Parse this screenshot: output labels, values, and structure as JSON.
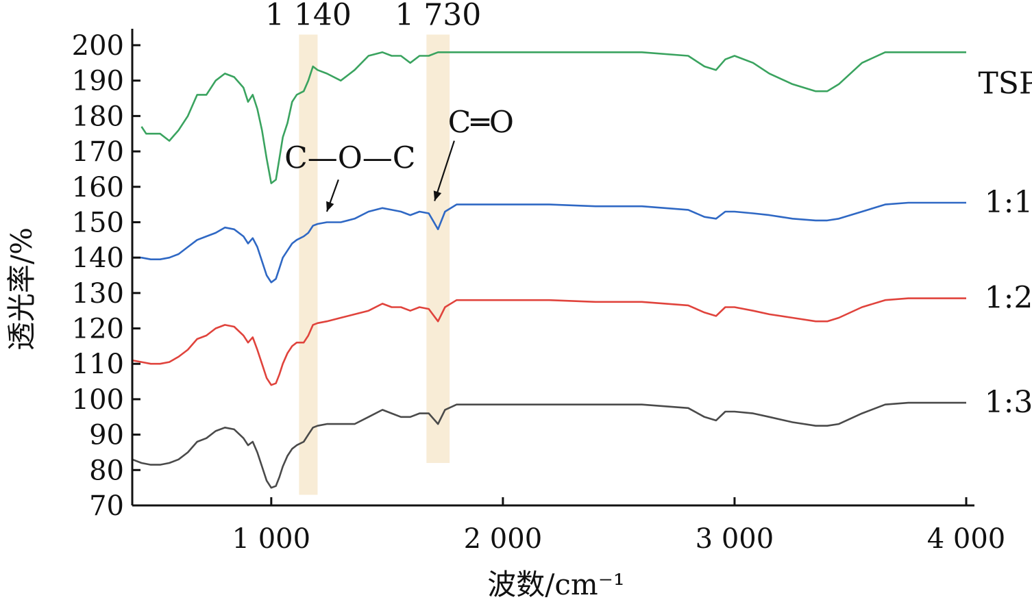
{
  "chart_data": {
    "type": "line",
    "xlabel": "波数/cm⁻¹",
    "ylabel": "透光率/%",
    "xlim": [
      400,
      4000
    ],
    "ylim": [
      70,
      200
    ],
    "x_ticks": [
      1000,
      2000,
      3000,
      4000
    ],
    "x_tick_labels": [
      "1 000",
      "2 000",
      "3 000",
      "4 000"
    ],
    "y_ticks": [
      70,
      80,
      90,
      100,
      110,
      120,
      130,
      140,
      150,
      160,
      170,
      180,
      190,
      200
    ],
    "grid": false,
    "bands": [
      {
        "label": "1 140",
        "x_from": 1120,
        "x_to": 1200,
        "y_from": 73,
        "y_to": 203,
        "color": "#f8ecd6"
      },
      {
        "label": "1 730",
        "x_from": 1670,
        "x_to": 1770,
        "y_from": 82,
        "y_to": 203,
        "color": "#f8ecd6"
      }
    ],
    "annotations": [
      {
        "text": "C—O—C",
        "text_x": 1340,
        "text_y": 168,
        "arrow_from": [
          1290,
          162
        ],
        "arrow_to": [
          1240,
          153
        ]
      },
      {
        "text": "C═O",
        "text_x": 1905,
        "text_y": 178,
        "arrow_from": [
          1790,
          173
        ],
        "arrow_to": [
          1705,
          156
        ]
      }
    ],
    "series": [
      {
        "name": "TSP",
        "color": "#3aa35f",
        "x": [
          440,
          460,
          480,
          520,
          560,
          600,
          640,
          680,
          720,
          760,
          800,
          840,
          880,
          900,
          920,
          940,
          960,
          980,
          1000,
          1020,
          1035,
          1050,
          1070,
          1090,
          1110,
          1140,
          1160,
          1180,
          1200,
          1240,
          1300,
          1360,
          1420,
          1480,
          1520,
          1560,
          1600,
          1640,
          1680,
          1720,
          1750,
          1800,
          1900,
          2000,
          2200,
          2400,
          2600,
          2800,
          2870,
          2920,
          2960,
          3000,
          3080,
          3150,
          3250,
          3350,
          3400,
          3450,
          3550,
          3650,
          3750,
          3850,
          4000
        ],
        "y": [
          177,
          175,
          175,
          175,
          173,
          176,
          180,
          186,
          186,
          190,
          192,
          191,
          188,
          184,
          186,
          182,
          176,
          168,
          161,
          162,
          168,
          174,
          178,
          184,
          186,
          187,
          190,
          194,
          193,
          192,
          190,
          193,
          197,
          198,
          197,
          197,
          195,
          197,
          197,
          198,
          198,
          198,
          198,
          198,
          198,
          198,
          198,
          197,
          194,
          193,
          196,
          197,
          195,
          192,
          189,
          187,
          187,
          189,
          195,
          198,
          198,
          198,
          198
        ]
      },
      {
        "name": "1:1",
        "color": "#2f68c4",
        "x": [
          400,
          440,
          480,
          520,
          560,
          600,
          640,
          680,
          720,
          760,
          800,
          840,
          880,
          900,
          920,
          940,
          960,
          980,
          1000,
          1020,
          1035,
          1050,
          1070,
          1090,
          1110,
          1140,
          1160,
          1180,
          1200,
          1240,
          1300,
          1360,
          1420,
          1480,
          1520,
          1560,
          1600,
          1640,
          1680,
          1720,
          1750,
          1800,
          1900,
          2000,
          2200,
          2400,
          2600,
          2800,
          2870,
          2920,
          2960,
          3000,
          3080,
          3150,
          3250,
          3350,
          3400,
          3450,
          3550,
          3650,
          3750,
          3850,
          4000
        ],
        "y": [
          140,
          140,
          139.5,
          139.5,
          140,
          141,
          143,
          145,
          146,
          147,
          148.5,
          148,
          146,
          144,
          145.5,
          143,
          139,
          135,
          133,
          134,
          137,
          140,
          142,
          144,
          145,
          146,
          147,
          149,
          149.5,
          150,
          150,
          151,
          153,
          154,
          153.5,
          153,
          152,
          153,
          152.5,
          148,
          153,
          155,
          155,
          155,
          155,
          154.5,
          154.5,
          153.5,
          151.5,
          151,
          153,
          153,
          152.5,
          152,
          151,
          150.5,
          150.5,
          151,
          153,
          155,
          155.5,
          155.5,
          155.5
        ]
      },
      {
        "name": "1:2",
        "color": "#e0433c",
        "x": [
          400,
          440,
          480,
          520,
          560,
          600,
          640,
          680,
          720,
          760,
          800,
          840,
          880,
          900,
          920,
          940,
          960,
          980,
          1000,
          1020,
          1035,
          1050,
          1070,
          1090,
          1110,
          1140,
          1160,
          1180,
          1200,
          1240,
          1300,
          1360,
          1420,
          1480,
          1520,
          1560,
          1600,
          1640,
          1680,
          1720,
          1750,
          1800,
          1900,
          2000,
          2200,
          2400,
          2600,
          2800,
          2870,
          2920,
          2960,
          3000,
          3080,
          3150,
          3250,
          3350,
          3400,
          3450,
          3550,
          3650,
          3750,
          3850,
          4000
        ],
        "y": [
          111,
          110.5,
          110,
          110,
          110.5,
          112,
          114,
          117,
          118,
          120,
          121,
          120.5,
          118,
          116,
          117.5,
          114,
          110,
          106,
          104,
          104.5,
          107,
          110,
          113,
          115,
          116,
          116,
          118,
          121,
          121.5,
          122,
          123,
          124,
          125,
          127,
          126,
          126,
          125,
          126,
          125.5,
          122,
          126,
          128,
          128,
          128,
          128,
          127.5,
          127.5,
          126.5,
          124.5,
          123.5,
          126,
          126,
          125,
          124,
          123,
          122,
          122,
          123,
          126,
          128,
          128.5,
          128.5,
          128.5
        ]
      },
      {
        "name": "1:3",
        "color": "#4a4a4a",
        "x": [
          400,
          440,
          480,
          520,
          560,
          600,
          640,
          680,
          720,
          760,
          800,
          840,
          880,
          900,
          920,
          940,
          960,
          980,
          1000,
          1020,
          1035,
          1050,
          1070,
          1090,
          1110,
          1140,
          1160,
          1180,
          1200,
          1240,
          1300,
          1360,
          1420,
          1480,
          1520,
          1560,
          1600,
          1640,
          1680,
          1720,
          1750,
          1800,
          1900,
          2000,
          2200,
          2400,
          2600,
          2800,
          2870,
          2920,
          2960,
          3000,
          3080,
          3150,
          3250,
          3350,
          3400,
          3450,
          3550,
          3650,
          3750,
          3850,
          4000
        ],
        "y": [
          83,
          82,
          81.5,
          81.5,
          82,
          83,
          85,
          88,
          89,
          91,
          92,
          91.5,
          89,
          87,
          88,
          85,
          81,
          77,
          75,
          75.5,
          78,
          81,
          84,
          86,
          87,
          88,
          90,
          92,
          92.5,
          93,
          93,
          93,
          95,
          97,
          96,
          95,
          95,
          96,
          96,
          93,
          97,
          98.5,
          98.5,
          98.5,
          98.5,
          98.5,
          98.5,
          97.5,
          95,
          94,
          96.5,
          96.5,
          96,
          95,
          93.5,
          92.5,
          92.5,
          93,
          96,
          98.5,
          99,
          99,
          99
        ]
      }
    ]
  }
}
